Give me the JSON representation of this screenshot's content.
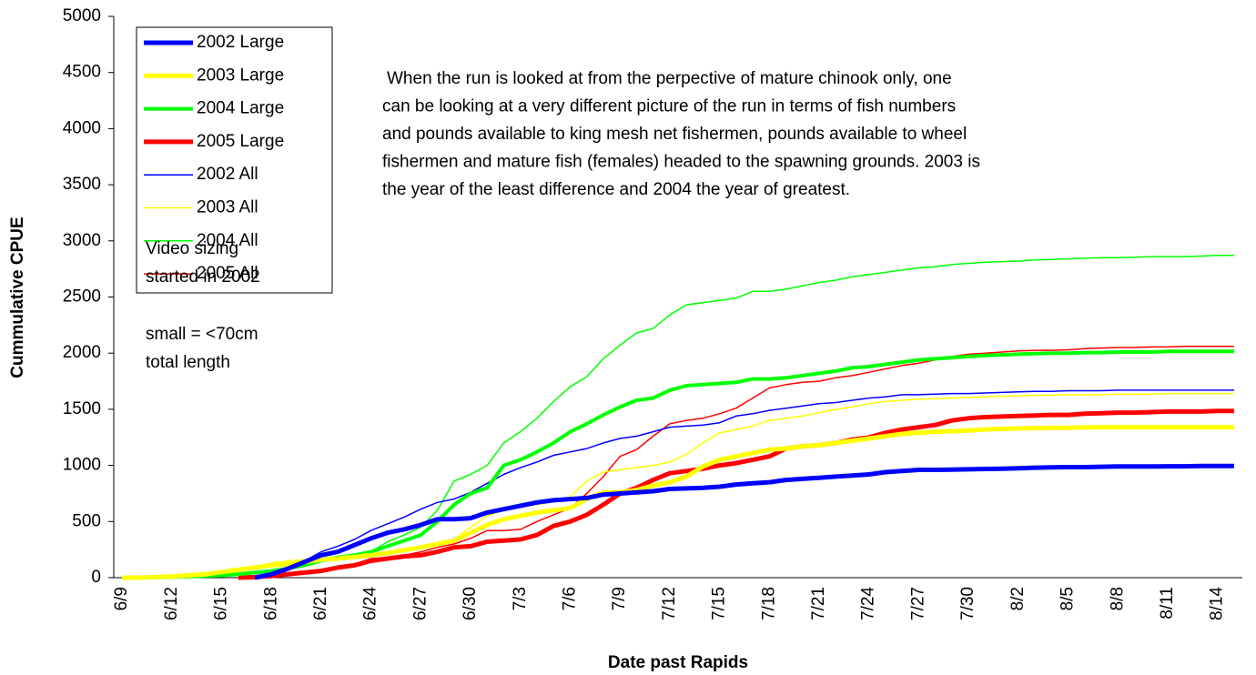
{
  "chart_data": {
    "type": "line",
    "x_label": "Date past Rapids",
    "y_label": "Cummulative CPUE",
    "ylim": [
      0,
      5000
    ],
    "yticks": [
      0,
      500,
      1000,
      1500,
      2000,
      2500,
      3000,
      3500,
      4000,
      4500,
      5000
    ],
    "grid": false,
    "legend": "upper left",
    "annotation": [
      "When the run is looked at from the perpective of mature chinook only, one",
      "can be looking at a very different picture of the run in terms of fish numbers",
      "and pounds available to king mesh net fishermen, pounds available to wheel",
      "fishermen and mature fish (females) headed to the spawning grounds. 2003 is",
      "the year of the least difference and 2004 the year of greatest."
    ],
    "note": [
      "Video sizing",
      "started in 2002",
      "small = <70cm",
      "total length"
    ],
    "categories": [
      "6/9",
      null,
      null,
      "6/12",
      null,
      null,
      "6/15",
      null,
      null,
      "6/18",
      null,
      null,
      "6/21",
      null,
      null,
      "6/24",
      null,
      null,
      "6/27",
      null,
      null,
      "6/30",
      null,
      null,
      "7/3",
      null,
      null,
      "7/6",
      null,
      null,
      "7/9",
      null,
      null,
      "7/12",
      null,
      null,
      "7/15",
      null,
      null,
      "7/18",
      null,
      null,
      "7/21",
      null,
      null,
      "7/24",
      null,
      null,
      "7/27",
      null,
      null,
      "7/30",
      null,
      null,
      "8/2",
      null,
      null,
      "8/5",
      null,
      null,
      "8/8",
      null,
      null,
      "8/11",
      null,
      null,
      "8/14",
      null
    ],
    "series": [
      {
        "name": "2002 Large",
        "color": "#0000ff",
        "width": 5,
        "values": [
          null,
          null,
          null,
          null,
          null,
          null,
          null,
          null,
          0,
          30,
          80,
          140,
          200,
          230,
          290,
          350,
          400,
          430,
          470,
          520,
          520,
          530,
          580,
          610,
          640,
          670,
          690,
          700,
          710,
          740,
          750,
          760,
          770,
          790,
          795,
          800,
          810,
          830,
          840,
          850,
          870,
          880,
          890,
          900,
          910,
          920,
          940,
          950,
          960,
          960,
          962,
          965,
          968,
          970,
          975,
          980,
          982,
          985,
          985,
          988,
          990,
          990,
          990,
          992,
          992,
          995,
          995,
          995
        ]
      },
      {
        "name": "2003 Large",
        "color": "#ffff00",
        "width": 5,
        "values": [
          0,
          0,
          5,
          10,
          20,
          30,
          50,
          70,
          90,
          110,
          120,
          140,
          160,
          170,
          185,
          200,
          220,
          245,
          270,
          300,
          330,
          400,
          470,
          520,
          550,
          580,
          600,
          620,
          700,
          760,
          760,
          780,
          820,
          850,
          900,
          990,
          1050,
          1080,
          1110,
          1140,
          1150,
          1170,
          1180,
          1200,
          1220,
          1240,
          1260,
          1280,
          1290,
          1300,
          1305,
          1310,
          1320,
          1325,
          1330,
          1332,
          1335,
          1335,
          1338,
          1340,
          1340,
          1340,
          1340,
          1340,
          1340,
          1340,
          1340,
          1340
        ]
      },
      {
        "name": "2004 Large",
        "color": "#00ff00",
        "width": 4,
        "values": [
          0,
          0,
          0,
          5,
          10,
          15,
          20,
          30,
          45,
          60,
          80,
          110,
          150,
          180,
          200,
          230,
          280,
          330,
          380,
          500,
          650,
          750,
          800,
          1000,
          1050,
          1120,
          1200,
          1300,
          1370,
          1450,
          1520,
          1580,
          1600,
          1670,
          1710,
          1720,
          1730,
          1740,
          1770,
          1770,
          1780,
          1800,
          1820,
          1840,
          1870,
          1880,
          1900,
          1920,
          1940,
          1950,
          1960,
          1970,
          1980,
          1985,
          1990,
          1995,
          2000,
          2000,
          2005,
          2005,
          2010,
          2010,
          2010,
          2015,
          2015,
          2015,
          2015,
          2015
        ]
      },
      {
        "name": "2005 Large",
        "color": "#ff0000",
        "width": 5,
        "values": [
          null,
          null,
          null,
          null,
          null,
          null,
          null,
          0,
          5,
          15,
          30,
          45,
          60,
          90,
          110,
          150,
          170,
          190,
          200,
          230,
          270,
          280,
          320,
          330,
          340,
          380,
          460,
          500,
          560,
          650,
          750,
          800,
          870,
          930,
          950,
          970,
          1000,
          1020,
          1050,
          1080,
          1150,
          1170,
          1180,
          1200,
          1230,
          1250,
          1290,
          1320,
          1340,
          1360,
          1400,
          1420,
          1430,
          1435,
          1440,
          1445,
          1450,
          1450,
          1460,
          1465,
          1470,
          1470,
          1475,
          1480,
          1480,
          1480,
          1485,
          1485
        ]
      },
      {
        "name": "2002 All",
        "color": "#0000ff",
        "width": 1.5,
        "values": [
          null,
          null,
          null,
          null,
          null,
          null,
          null,
          null,
          0,
          30,
          80,
          150,
          230,
          280,
          340,
          420,
          480,
          540,
          610,
          670,
          700,
          760,
          840,
          920,
          980,
          1030,
          1090,
          1120,
          1150,
          1200,
          1240,
          1260,
          1300,
          1340,
          1350,
          1360,
          1380,
          1440,
          1460,
          1490,
          1510,
          1530,
          1550,
          1560,
          1580,
          1600,
          1610,
          1630,
          1630,
          1635,
          1640,
          1640,
          1645,
          1650,
          1655,
          1660,
          1660,
          1665,
          1665,
          1665,
          1670,
          1670,
          1670,
          1670,
          1670,
          1670,
          1670,
          1670
        ]
      },
      {
        "name": "2003 All",
        "color": "#ffff00",
        "width": 1.5,
        "values": [
          0,
          0,
          5,
          10,
          20,
          30,
          40,
          70,
          100,
          130,
          150,
          160,
          170,
          180,
          200,
          210,
          230,
          250,
          280,
          300,
          340,
          450,
          550,
          600,
          630,
          650,
          680,
          720,
          860,
          940,
          960,
          980,
          1000,
          1030,
          1100,
          1200,
          1290,
          1320,
          1350,
          1400,
          1420,
          1440,
          1470,
          1500,
          1520,
          1550,
          1570,
          1580,
          1590,
          1595,
          1600,
          1605,
          1610,
          1615,
          1620,
          1625,
          1625,
          1630,
          1630,
          1630,
          1635,
          1635,
          1635,
          1640,
          1640,
          1640,
          1640,
          1640
        ]
      },
      {
        "name": "2004 All",
        "color": "#00ff00",
        "width": 1.5,
        "values": [
          0,
          0,
          0,
          5,
          10,
          15,
          20,
          35,
          50,
          70,
          90,
          130,
          170,
          190,
          200,
          230,
          320,
          380,
          450,
          600,
          860,
          920,
          1000,
          1200,
          1300,
          1420,
          1570,
          1700,
          1790,
          1950,
          2070,
          2180,
          2220,
          2340,
          2430,
          2450,
          2470,
          2490,
          2550,
          2550,
          2570,
          2600,
          2630,
          2650,
          2680,
          2700,
          2720,
          2740,
          2760,
          2770,
          2790,
          2800,
          2810,
          2815,
          2820,
          2830,
          2835,
          2840,
          2845,
          2850,
          2850,
          2855,
          2860,
          2860,
          2860,
          2865,
          2870,
          2870
        ]
      },
      {
        "name": "2005 All",
        "color": "#ff0000",
        "width": 1.5,
        "values": [
          null,
          null,
          null,
          null,
          null,
          null,
          null,
          0,
          5,
          20,
          35,
          50,
          70,
          100,
          120,
          170,
          180,
          200,
          230,
          270,
          300,
          350,
          420,
          420,
          430,
          500,
          560,
          620,
          750,
          900,
          1080,
          1140,
          1260,
          1370,
          1400,
          1420,
          1460,
          1510,
          1600,
          1690,
          1720,
          1740,
          1750,
          1780,
          1800,
          1830,
          1860,
          1890,
          1910,
          1940,
          1970,
          1990,
          2000,
          2010,
          2020,
          2025,
          2025,
          2030,
          2040,
          2045,
          2050,
          2050,
          2055,
          2055,
          2060,
          2060,
          2060,
          2060
        ]
      }
    ]
  }
}
